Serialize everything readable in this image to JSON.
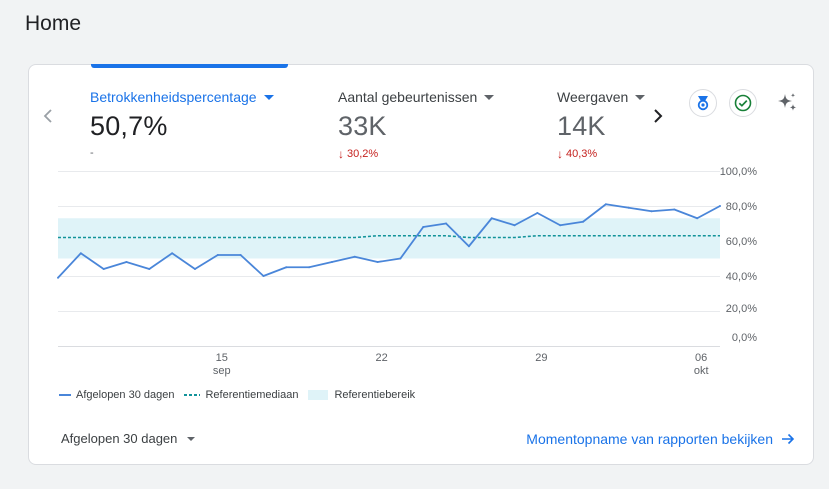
{
  "page": {
    "title": "Home"
  },
  "metrics": [
    {
      "label": "Betrokkenheidspercentage",
      "value": "50,7%",
      "change": "-",
      "direction": "none",
      "active": true
    },
    {
      "label": "Aantal gebeurtenissen",
      "value": "33K",
      "change": "30,2%",
      "direction": "down",
      "active": false
    },
    {
      "label": "Weergaven",
      "value": "14K",
      "change": "40,3%",
      "direction": "down",
      "active": false
    }
  ],
  "icons": {
    "prev": "chevron-left-icon",
    "next": "chevron-right-icon",
    "badge": "ribbon-badge-icon",
    "check": "check-circle-icon",
    "insights": "sparkle-icon"
  },
  "colors": {
    "accent": "#1a73e8",
    "series": "#4a86d9",
    "median": "#12939a",
    "band": "#dff3f8",
    "negative": "#c5221f"
  },
  "legend": {
    "current": "Afgelopen 30 dagen",
    "median": "Referentiemediaan",
    "range": "Referentiebereik"
  },
  "footer": {
    "period": "Afgelopen 30 dagen",
    "snapshot_link": "Momentopname van rapporten bekijken"
  },
  "chart_data": {
    "type": "line",
    "y_ticks": [
      "100,0%",
      "80,0%",
      "60,0%",
      "40,0%",
      "20,0%",
      "0,0%"
    ],
    "ylim": [
      0,
      100
    ],
    "x_ticks": [
      {
        "label": "15",
        "sub": "sep",
        "index": 7
      },
      {
        "label": "22",
        "sub": "",
        "index": 14
      },
      {
        "label": "29",
        "sub": "",
        "index": 21
      },
      {
        "label": "06",
        "sub": "okt",
        "index": 28
      }
    ],
    "series": [
      {
        "name": "Afgelopen 30 dagen",
        "values": [
          39,
          53,
          44,
          48,
          44,
          53,
          44,
          52,
          52,
          40,
          45,
          45,
          48,
          51,
          48,
          50,
          68,
          70,
          57,
          73,
          69,
          76,
          69,
          71,
          81,
          79,
          77,
          78,
          73,
          80
        ]
      },
      {
        "name": "Referentiemediaan",
        "values": [
          62,
          62,
          62,
          62,
          62,
          62,
          62,
          62,
          62,
          62,
          62,
          62,
          62,
          62,
          63,
          63,
          63,
          63,
          62,
          62,
          62,
          63,
          63,
          63,
          63,
          63,
          63,
          63,
          63,
          63
        ]
      }
    ],
    "band": {
      "name": "Referentiebereik",
      "lower": 50,
      "upper": 73
    }
  }
}
